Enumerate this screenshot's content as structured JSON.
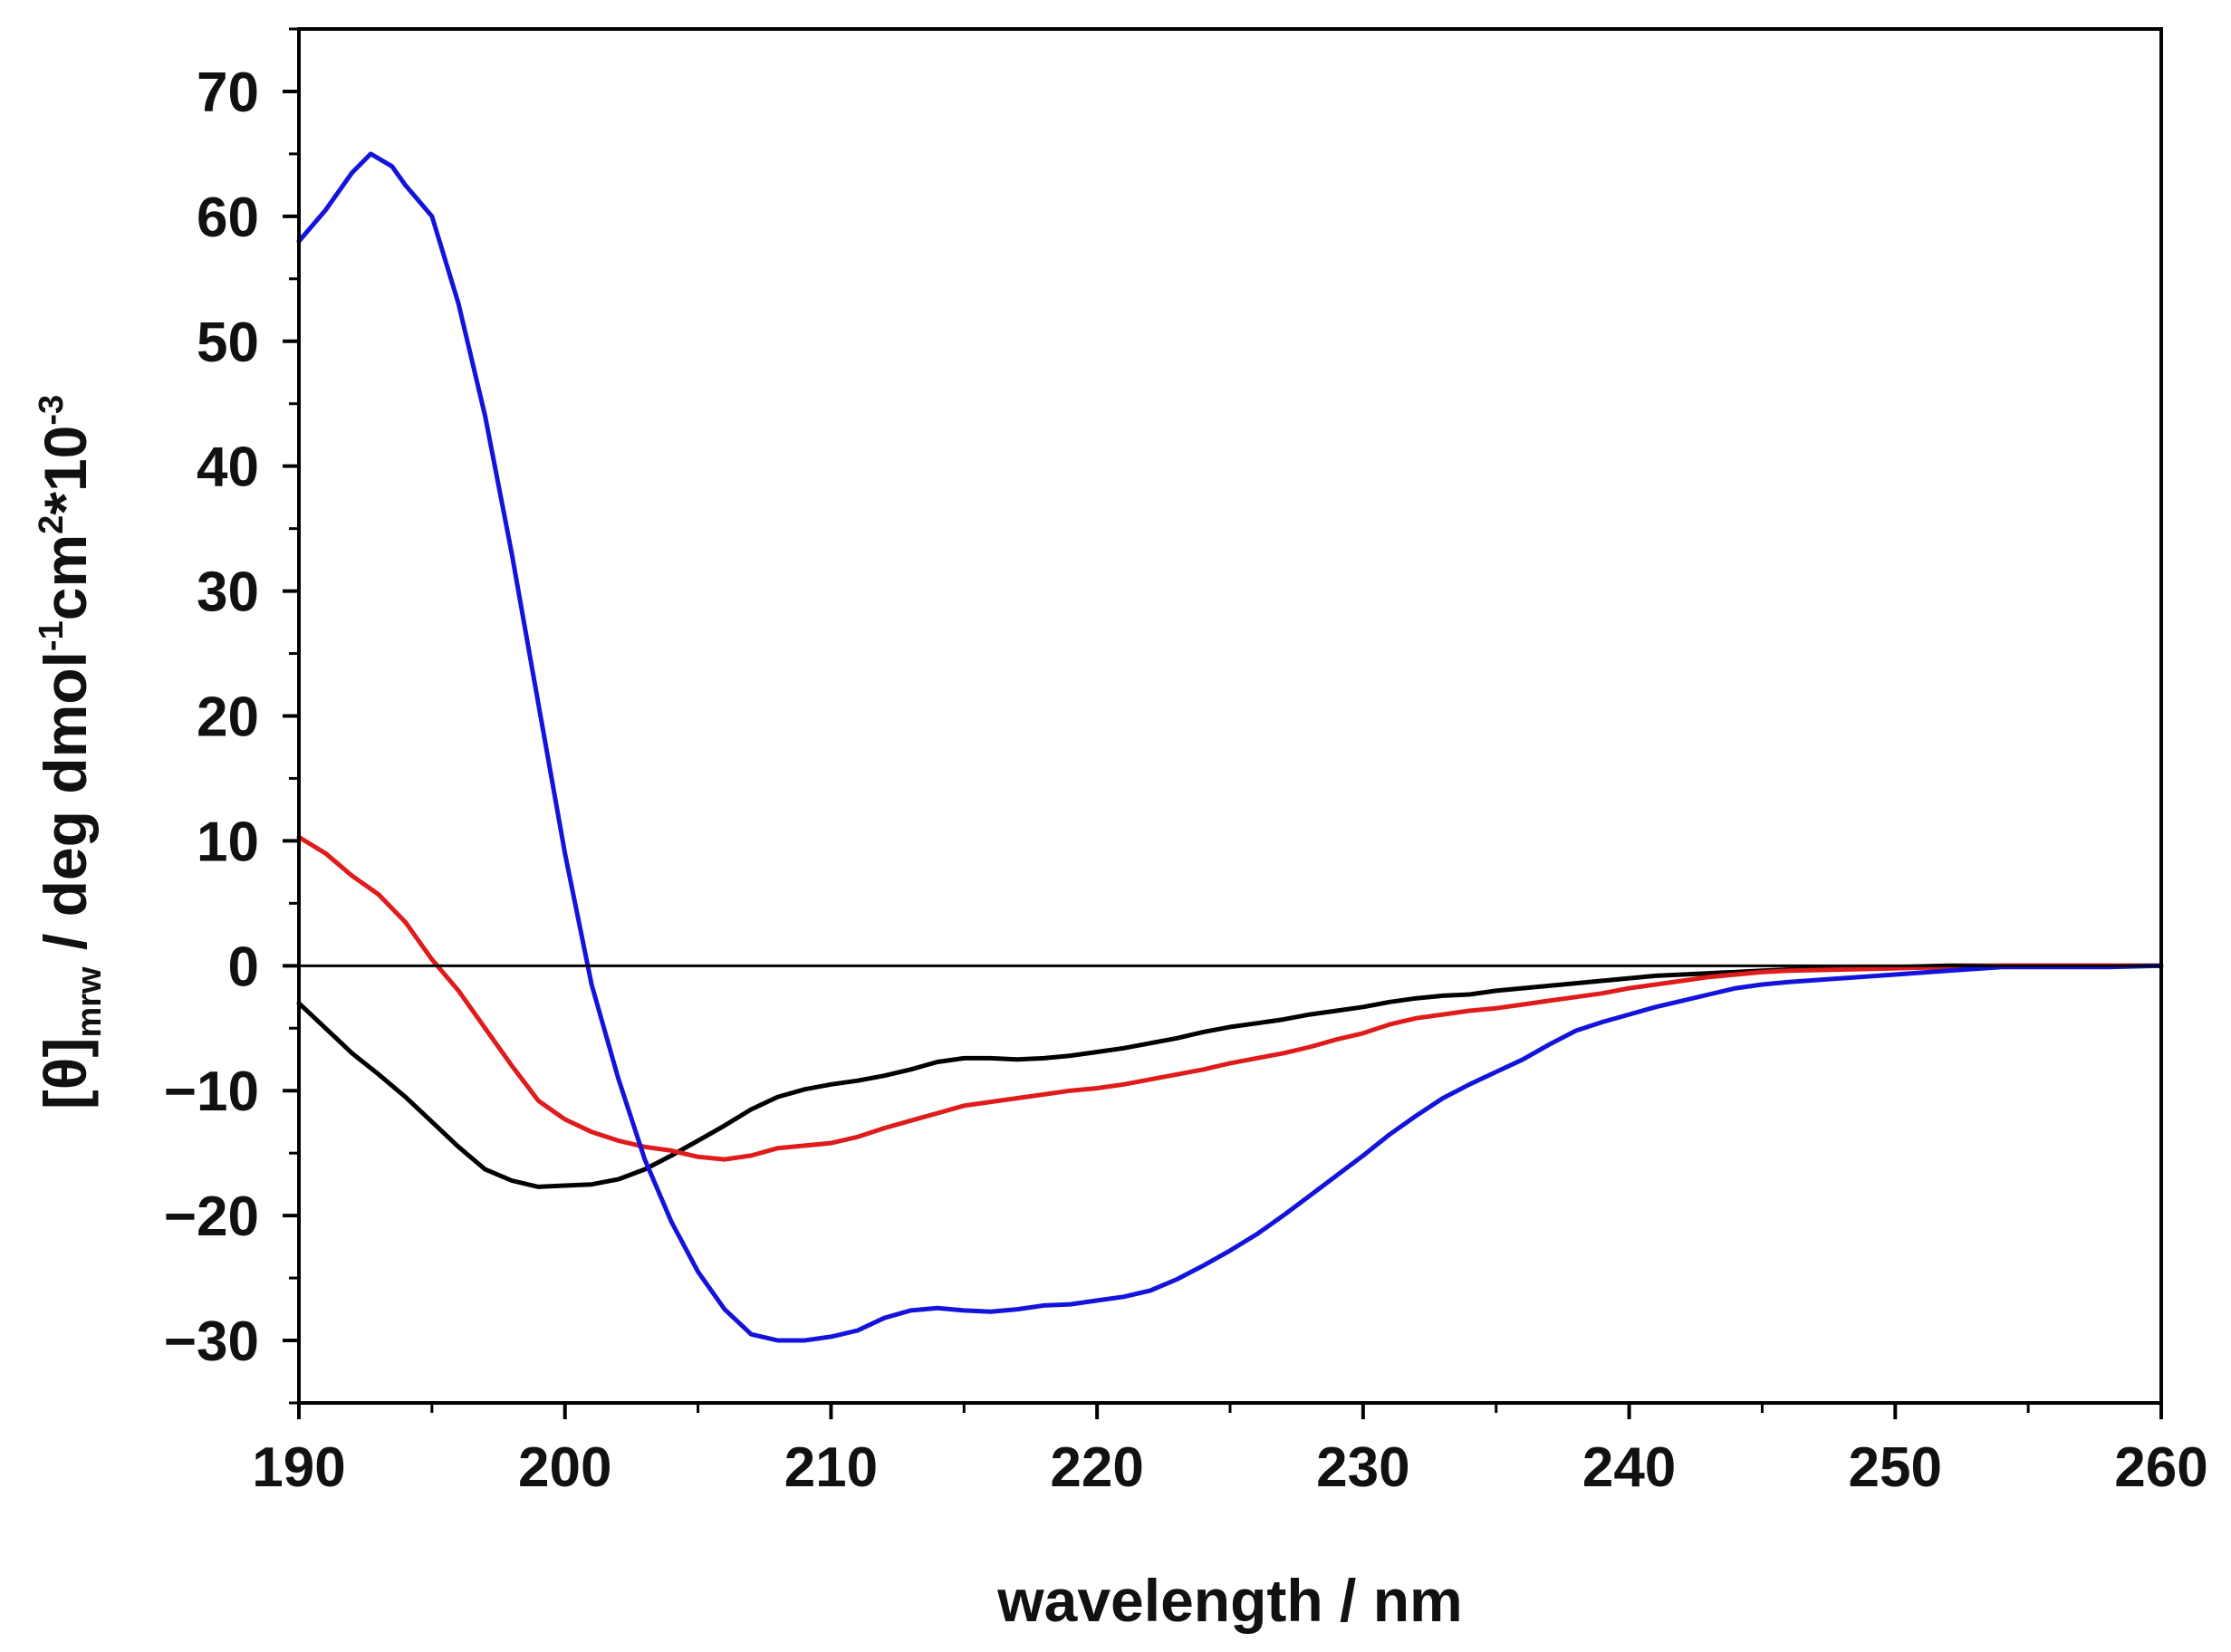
{
  "chart_data": {
    "type": "line",
    "title": "",
    "xlabel": "wavelength / nm",
    "ylabel": {
      "main": "[θ]",
      "subscript": "mrw",
      "part1": " / deg dmol",
      "sup1": "-1",
      "part2": "cm",
      "sup2": "2",
      "part3": "*10",
      "sup3": "-3"
    },
    "xlim": [
      190,
      260
    ],
    "ylim": [
      -35,
      75
    ],
    "x_ticks": [
      190,
      200,
      210,
      220,
      230,
      240,
      250,
      260
    ],
    "x_tick_labels": [
      "190",
      "200",
      "210",
      "220",
      "230",
      "240",
      "250",
      "260"
    ],
    "y_ticks": [
      -30,
      -20,
      -10,
      0,
      10,
      20,
      30,
      40,
      50,
      60,
      70
    ],
    "y_tick_labels": [
      "−30",
      "−20",
      "−10",
      "0",
      "10",
      "20",
      "30",
      "40",
      "50",
      "60",
      "70"
    ],
    "zero_line": true,
    "grid": false,
    "series": [
      {
        "name": "black",
        "color": "#000000",
        "points": [
          [
            190,
            -3
          ],
          [
            191,
            -5
          ],
          [
            192,
            -7
          ],
          [
            193,
            -8.7
          ],
          [
            194,
            -10.5
          ],
          [
            195,
            -12.5
          ],
          [
            196,
            -14.5
          ],
          [
            197,
            -16.3
          ],
          [
            198,
            -17.2
          ],
          [
            199,
            -17.7
          ],
          [
            200,
            -17.6
          ],
          [
            201,
            -17.5
          ],
          [
            202,
            -17.1
          ],
          [
            203,
            -16.3
          ],
          [
            204,
            -15.2
          ],
          [
            205,
            -14
          ],
          [
            206,
            -12.8
          ],
          [
            207,
            -11.5
          ],
          [
            208,
            -10.5
          ],
          [
            209,
            -9.9
          ],
          [
            210,
            -9.5
          ],
          [
            211,
            -9.2
          ],
          [
            212,
            -8.8
          ],
          [
            213,
            -8.3
          ],
          [
            214,
            -7.7
          ],
          [
            215,
            -7.4
          ],
          [
            216,
            -7.4
          ],
          [
            217,
            -7.5
          ],
          [
            218,
            -7.4
          ],
          [
            219,
            -7.2
          ],
          [
            220,
            -6.9
          ],
          [
            221,
            -6.6
          ],
          [
            222,
            -6.2
          ],
          [
            223,
            -5.8
          ],
          [
            224,
            -5.3
          ],
          [
            225,
            -4.9
          ],
          [
            226,
            -4.6
          ],
          [
            227,
            -4.3
          ],
          [
            228,
            -3.9
          ],
          [
            229,
            -3.6
          ],
          [
            230,
            -3.3
          ],
          [
            231,
            -2.9
          ],
          [
            232,
            -2.6
          ],
          [
            233,
            -2.4
          ],
          [
            234,
            -2.3
          ],
          [
            235,
            -2
          ],
          [
            236,
            -1.8
          ],
          [
            237,
            -1.6
          ],
          [
            238,
            -1.4
          ],
          [
            239,
            -1.2
          ],
          [
            240,
            -1
          ],
          [
            241,
            -0.8
          ],
          [
            242,
            -0.7
          ],
          [
            243,
            -0.6
          ],
          [
            244,
            -0.5
          ],
          [
            245,
            -0.4
          ],
          [
            246,
            -0.3
          ],
          [
            248,
            -0.2
          ],
          [
            250,
            -0.1
          ],
          [
            252,
            0
          ],
          [
            254,
            0
          ],
          [
            256,
            0
          ],
          [
            258,
            0
          ],
          [
            260,
            0
          ]
        ]
      },
      {
        "name": "red",
        "color": "#e01b1b",
        "points": [
          [
            190,
            10.3
          ],
          [
            191,
            9
          ],
          [
            192,
            7.2
          ],
          [
            193,
            5.7
          ],
          [
            194,
            3.5
          ],
          [
            195,
            0.5
          ],
          [
            196,
            -2
          ],
          [
            197,
            -5
          ],
          [
            198,
            -8
          ],
          [
            199,
            -10.8
          ],
          [
            200,
            -12.3
          ],
          [
            201,
            -13.3
          ],
          [
            202,
            -14
          ],
          [
            203,
            -14.5
          ],
          [
            204,
            -14.8
          ],
          [
            205,
            -15.3
          ],
          [
            206,
            -15.5
          ],
          [
            207,
            -15.2
          ],
          [
            208,
            -14.6
          ],
          [
            209,
            -14.4
          ],
          [
            210,
            -14.2
          ],
          [
            211,
            -13.7
          ],
          [
            212,
            -13
          ],
          [
            213,
            -12.4
          ],
          [
            214,
            -11.8
          ],
          [
            215,
            -11.2
          ],
          [
            216,
            -10.9
          ],
          [
            217,
            -10.6
          ],
          [
            218,
            -10.3
          ],
          [
            219,
            -10
          ],
          [
            220,
            -9.8
          ],
          [
            221,
            -9.5
          ],
          [
            222,
            -9.1
          ],
          [
            223,
            -8.7
          ],
          [
            224,
            -8.3
          ],
          [
            225,
            -7.8
          ],
          [
            226,
            -7.4
          ],
          [
            227,
            -7
          ],
          [
            228,
            -6.5
          ],
          [
            229,
            -5.9
          ],
          [
            230,
            -5.4
          ],
          [
            231,
            -4.7
          ],
          [
            232,
            -4.2
          ],
          [
            233,
            -3.9
          ],
          [
            234,
            -3.6
          ],
          [
            235,
            -3.4
          ],
          [
            236,
            -3.1
          ],
          [
            237,
            -2.8
          ],
          [
            238,
            -2.5
          ],
          [
            239,
            -2.2
          ],
          [
            240,
            -1.8
          ],
          [
            241,
            -1.5
          ],
          [
            242,
            -1.2
          ],
          [
            243,
            -0.9
          ],
          [
            244,
            -0.7
          ],
          [
            245,
            -0.5
          ],
          [
            246,
            -0.4
          ],
          [
            248,
            -0.3
          ],
          [
            250,
            -0.2
          ],
          [
            252,
            -0.1
          ],
          [
            254,
            0
          ],
          [
            256,
            0
          ],
          [
            258,
            0
          ],
          [
            260,
            0
          ]
        ]
      },
      {
        "name": "blue",
        "color": "#1313dc",
        "points": [
          [
            190,
            58
          ],
          [
            191,
            60.5
          ],
          [
            192,
            63.5
          ],
          [
            192.7,
            65
          ],
          [
            193.5,
            64
          ],
          [
            194,
            62.5
          ],
          [
            195,
            60
          ],
          [
            196,
            53
          ],
          [
            197,
            44
          ],
          [
            198,
            33
          ],
          [
            199,
            21
          ],
          [
            200,
            9
          ],
          [
            201,
            -1.5
          ],
          [
            202,
            -9
          ],
          [
            203,
            -15.5
          ],
          [
            204,
            -20.5
          ],
          [
            205,
            -24.5
          ],
          [
            206,
            -27.5
          ],
          [
            207,
            -29.5
          ],
          [
            208,
            -30
          ],
          [
            209,
            -30
          ],
          [
            210,
            -29.7
          ],
          [
            211,
            -29.2
          ],
          [
            212,
            -28.2
          ],
          [
            213,
            -27.6
          ],
          [
            214,
            -27.4
          ],
          [
            215,
            -27.6
          ],
          [
            216,
            -27.7
          ],
          [
            217,
            -27.5
          ],
          [
            218,
            -27.2
          ],
          [
            219,
            -27.1
          ],
          [
            220,
            -26.8
          ],
          [
            221,
            -26.5
          ],
          [
            222,
            -26
          ],
          [
            223,
            -25.1
          ],
          [
            224,
            -24
          ],
          [
            225,
            -22.8
          ],
          [
            226,
            -21.5
          ],
          [
            227,
            -20
          ],
          [
            228,
            -18.4
          ],
          [
            229,
            -16.8
          ],
          [
            230,
            -15.2
          ],
          [
            231,
            -13.5
          ],
          [
            232,
            -12
          ],
          [
            233,
            -10.6
          ],
          [
            234,
            -9.5
          ],
          [
            235,
            -8.5
          ],
          [
            236,
            -7.5
          ],
          [
            237,
            -6.3
          ],
          [
            238,
            -5.2
          ],
          [
            239,
            -4.5
          ],
          [
            240,
            -3.9
          ],
          [
            241,
            -3.3
          ],
          [
            242,
            -2.8
          ],
          [
            243,
            -2.3
          ],
          [
            244,
            -1.8
          ],
          [
            245,
            -1.5
          ],
          [
            246,
            -1.3
          ],
          [
            248,
            -1
          ],
          [
            250,
            -0.7
          ],
          [
            252,
            -0.4
          ],
          [
            254,
            -0.1
          ],
          [
            256,
            -0.1
          ],
          [
            258,
            -0.1
          ],
          [
            260,
            0
          ]
        ]
      }
    ]
  }
}
